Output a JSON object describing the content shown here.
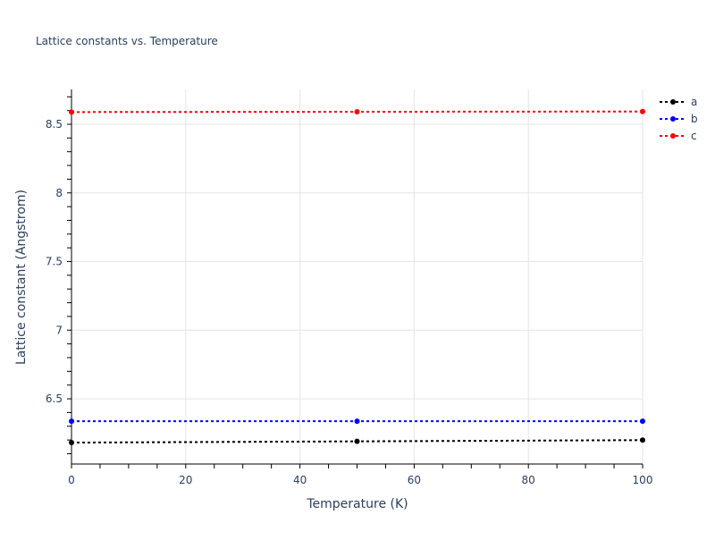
{
  "chart_data": {
    "type": "line",
    "title": "Lattice constants vs. Temperature",
    "xlabel": "Temperature (K)",
    "ylabel": "Lattice constant (Angstrom)",
    "xlim": [
      0,
      100
    ],
    "ylim": [
      6.025,
      8.754
    ],
    "x_ticks": [
      "0",
      "20",
      "40",
      "60",
      "80",
      "100"
    ],
    "y_ticks": [
      "6.5",
      "7",
      "7.5",
      "8",
      "8.5"
    ],
    "grid": true,
    "legend_position": "top-right",
    "x": [
      0,
      50,
      100
    ],
    "series": [
      {
        "name": "a",
        "values": [
          6.181,
          6.19,
          6.199
        ],
        "color": "#000000"
      },
      {
        "name": "b",
        "values": [
          6.337,
          6.337,
          6.337
        ],
        "color": "#0000ff"
      },
      {
        "name": "c",
        "values": [
          8.589,
          8.591,
          8.593
        ],
        "color": "#ff0000"
      }
    ]
  }
}
